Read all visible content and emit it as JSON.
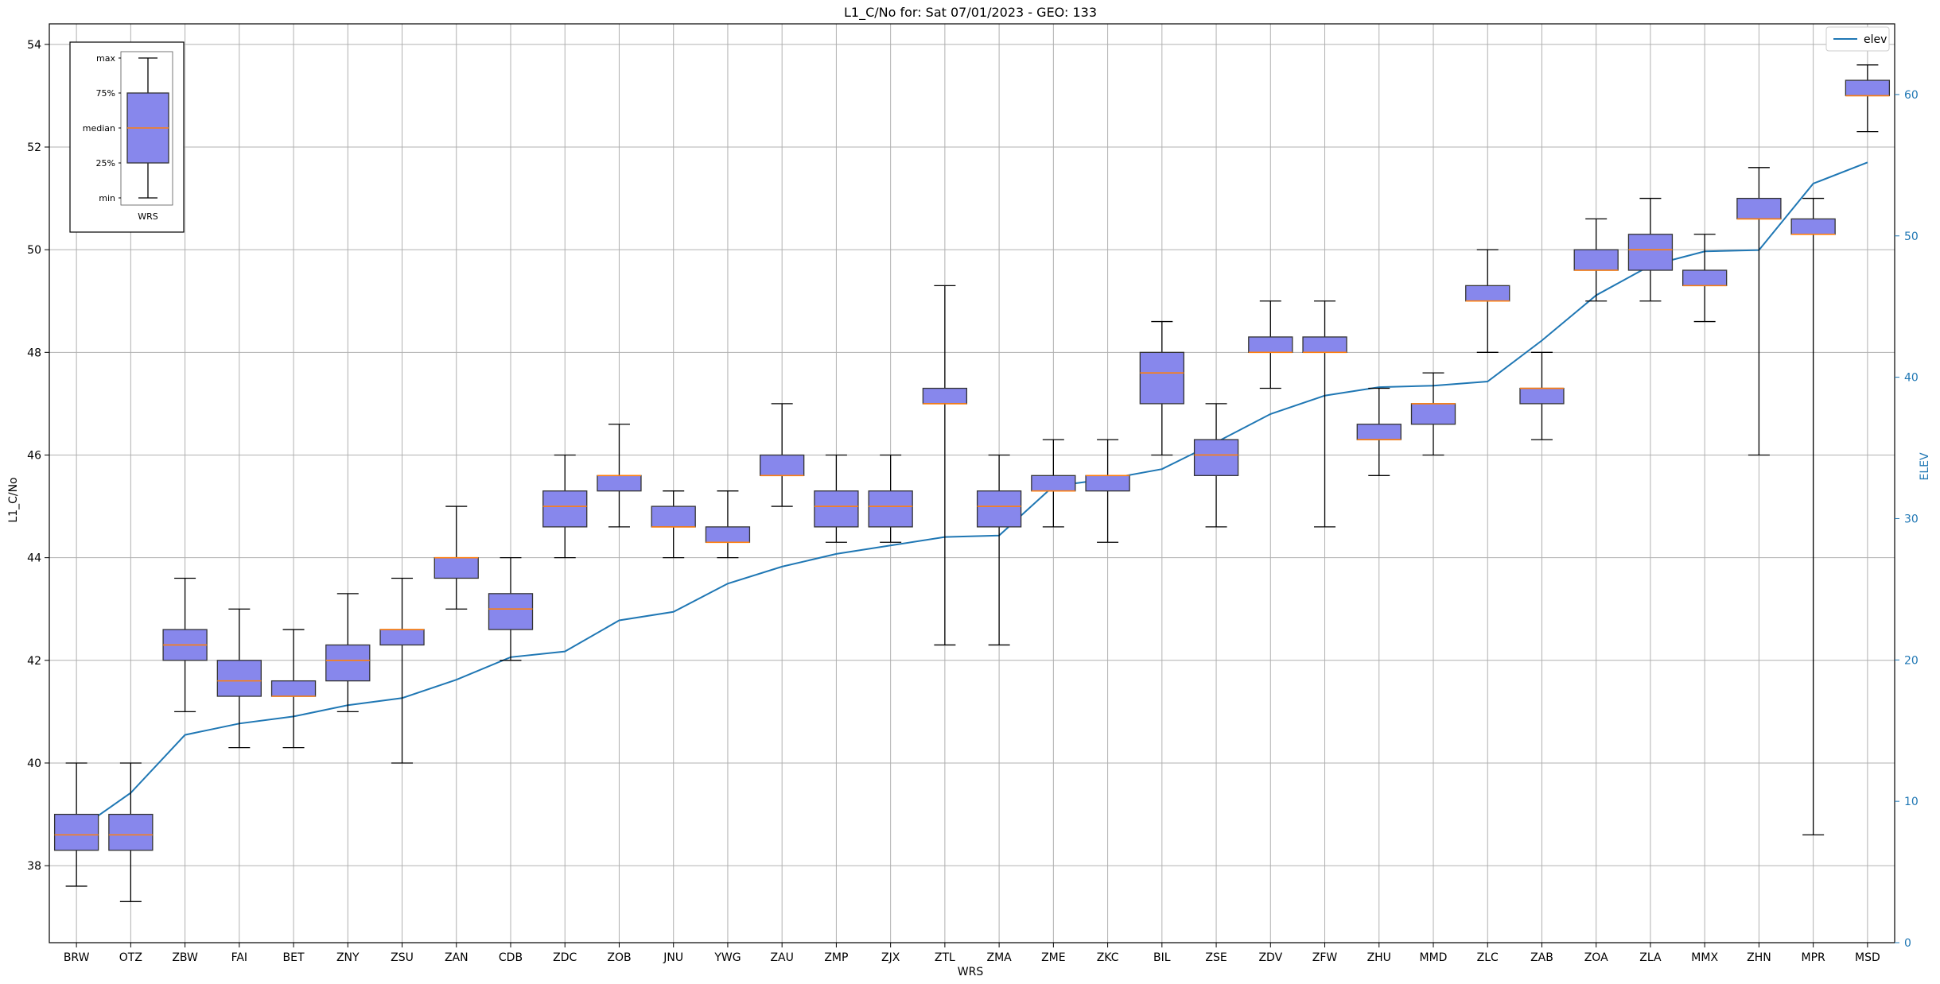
{
  "chart_data": {
    "type": "box",
    "title": "L1_C/No for: Sat 07/01/2023 - GEO: 133",
    "xlabel": "WRS",
    "ylabel": "L1_C/No",
    "y2label": "ELEV",
    "ylim": [
      36.5,
      54.4
    ],
    "y2lim": [
      0,
      65
    ],
    "yticks": [
      38,
      40,
      42,
      44,
      46,
      48,
      50,
      52,
      54
    ],
    "y2ticks": [
      0,
      10,
      20,
      30,
      40,
      50,
      60
    ],
    "grid": true,
    "box_color": "#8787ec",
    "median_color": "#ff7f0e",
    "line_color": "#1f77b4",
    "legend": {
      "placement": "top-right",
      "entries": [
        "elev"
      ]
    },
    "inset_legend": {
      "placement": "top-left",
      "labels": [
        "max",
        "75%",
        "median",
        "25%",
        "min"
      ],
      "xlabel": "WRS"
    },
    "categories": [
      "BRW",
      "OTZ",
      "ZBW",
      "FAI",
      "BET",
      "ZNY",
      "ZSU",
      "ZAN",
      "CDB",
      "ZDC",
      "ZOB",
      "JNU",
      "YWG",
      "ZAU",
      "ZMP",
      "ZJX",
      "ZTL",
      "ZMA",
      "ZME",
      "ZKC",
      "BIL",
      "ZSE",
      "ZDV",
      "ZFW",
      "ZHU",
      "MMD",
      "ZLC",
      "ZAB",
      "ZOA",
      "ZLA",
      "MMX",
      "ZHN",
      "MPR",
      "MSD"
    ],
    "boxes": [
      {
        "min": 37.6,
        "q1": 38.3,
        "median": 38.6,
        "q3": 39.0,
        "max": 40.0
      },
      {
        "min": 37.3,
        "q1": 38.3,
        "median": 38.6,
        "q3": 39.0,
        "max": 40.0
      },
      {
        "min": 41.0,
        "q1": 42.0,
        "median": 42.3,
        "q3": 42.6,
        "max": 43.6
      },
      {
        "min": 40.3,
        "q1": 41.3,
        "median": 41.6,
        "q3": 42.0,
        "max": 43.0
      },
      {
        "min": 40.3,
        "q1": 41.3,
        "median": 41.3,
        "q3": 41.6,
        "max": 42.6
      },
      {
        "min": 41.0,
        "q1": 41.6,
        "median": 42.0,
        "q3": 42.3,
        "max": 43.3
      },
      {
        "min": 40.0,
        "q1": 42.3,
        "median": 42.6,
        "q3": 42.6,
        "max": 43.6
      },
      {
        "min": 43.0,
        "q1": 43.6,
        "median": 44.0,
        "q3": 44.0,
        "max": 45.0
      },
      {
        "min": 42.0,
        "q1": 42.6,
        "median": 43.0,
        "q3": 43.3,
        "max": 44.0
      },
      {
        "min": 44.0,
        "q1": 44.6,
        "median": 45.0,
        "q3": 45.3,
        "max": 46.0
      },
      {
        "min": 44.6,
        "q1": 45.3,
        "median": 45.6,
        "q3": 45.6,
        "max": 46.6
      },
      {
        "min": 44.0,
        "q1": 44.6,
        "median": 44.6,
        "q3": 45.0,
        "max": 45.3
      },
      {
        "min": 44.0,
        "q1": 44.3,
        "median": 44.3,
        "q3": 44.6,
        "max": 45.3
      },
      {
        "min": 45.0,
        "q1": 45.6,
        "median": 45.6,
        "q3": 46.0,
        "max": 47.0
      },
      {
        "min": 44.3,
        "q1": 44.6,
        "median": 45.0,
        "q3": 45.3,
        "max": 46.0
      },
      {
        "min": 44.3,
        "q1": 44.6,
        "median": 45.0,
        "q3": 45.3,
        "max": 46.0
      },
      {
        "min": 42.3,
        "q1": 47.0,
        "median": 47.0,
        "q3": 47.3,
        "max": 49.3
      },
      {
        "min": 42.3,
        "q1": 44.6,
        "median": 45.0,
        "q3": 45.3,
        "max": 46.0
      },
      {
        "min": 44.6,
        "q1": 45.3,
        "median": 45.3,
        "q3": 45.6,
        "max": 46.3
      },
      {
        "min": 44.3,
        "q1": 45.3,
        "median": 45.6,
        "q3": 45.6,
        "max": 46.3
      },
      {
        "min": 46.0,
        "q1": 47.0,
        "median": 47.6,
        "q3": 48.0,
        "max": 48.6
      },
      {
        "min": 44.6,
        "q1": 45.6,
        "median": 46.0,
        "q3": 46.3,
        "max": 47.0
      },
      {
        "min": 47.3,
        "q1": 48.0,
        "median": 48.0,
        "q3": 48.3,
        "max": 49.0
      },
      {
        "min": 44.6,
        "q1": 48.0,
        "median": 48.0,
        "q3": 48.3,
        "max": 49.0
      },
      {
        "min": 45.6,
        "q1": 46.3,
        "median": 46.3,
        "q3": 46.6,
        "max": 47.3
      },
      {
        "min": 46.0,
        "q1": 46.6,
        "median": 47.0,
        "q3": 47.0,
        "max": 47.6
      },
      {
        "min": 48.0,
        "q1": 49.0,
        "median": 49.0,
        "q3": 49.3,
        "max": 50.0
      },
      {
        "min": 46.3,
        "q1": 47.0,
        "median": 47.3,
        "q3": 47.3,
        "max": 48.0
      },
      {
        "min": 49.0,
        "q1": 49.6,
        "median": 49.6,
        "q3": 50.0,
        "max": 50.6
      },
      {
        "min": 49.0,
        "q1": 49.6,
        "median": 50.0,
        "q3": 50.3,
        "max": 51.0
      },
      {
        "min": 48.6,
        "q1": 49.3,
        "median": 49.3,
        "q3": 49.6,
        "max": 50.3
      },
      {
        "min": 46.0,
        "q1": 50.6,
        "median": 50.6,
        "q3": 51.0,
        "max": 51.6
      },
      {
        "min": 38.6,
        "q1": 50.3,
        "median": 50.3,
        "q3": 50.6,
        "max": 51.0
      },
      {
        "min": 52.3,
        "q1": 53.0,
        "median": 53.0,
        "q3": 53.3,
        "max": 53.6
      }
    ],
    "elev": {
      "name": "elev",
      "values": [
        7.9,
        10.6,
        14.7,
        15.5,
        16.0,
        16.8,
        17.3,
        18.6,
        20.2,
        20.6,
        22.8,
        23.4,
        25.4,
        26.6,
        27.5,
        28.1,
        28.7,
        28.8,
        32.3,
        32.8,
        33.5,
        35.4,
        37.4,
        38.7,
        39.3,
        39.4,
        39.7,
        42.6,
        45.8,
        47.9,
        48.9,
        49.0,
        53.7,
        55.2
      ]
    }
  }
}
